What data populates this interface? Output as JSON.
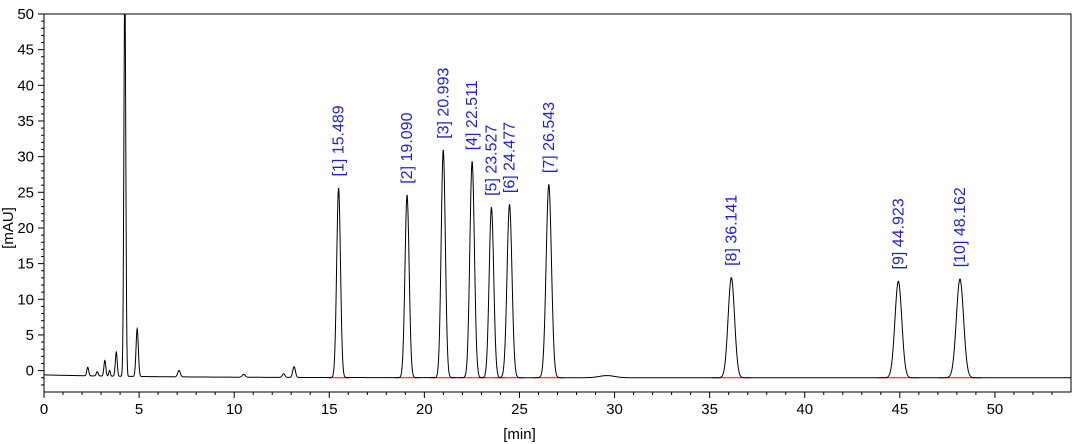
{
  "chart_data": {
    "type": "line",
    "xlabel": "[min]",
    "ylabel": "[mAU]",
    "xlim": [
      0,
      54
    ],
    "ylim": [
      -3,
      50
    ],
    "x_ticks": [
      0,
      5,
      10,
      15,
      20,
      25,
      30,
      35,
      40,
      45,
      50
    ],
    "y_ticks": [
      0,
      5,
      10,
      15,
      20,
      25,
      30,
      35,
      40,
      45,
      50
    ],
    "x_tick_labels": [
      "0",
      "5",
      "10",
      "15",
      "20",
      "25",
      "30",
      "35",
      "40",
      "45",
      "50"
    ],
    "y_tick_labels": [
      "0",
      "5",
      "10",
      "15",
      "20",
      "25",
      "30",
      "35",
      "40",
      "45",
      "50"
    ],
    "grid": false,
    "colors": {
      "trace": "#000000",
      "baseline": "#ff0000",
      "labels": "#1f1fcf",
      "frame": "#000000"
    },
    "baseline_level": -1.0,
    "labeled_peaks": [
      {
        "label": "[1]  15.489",
        "x": 15.489,
        "y": 26.5,
        "width": 0.1
      },
      {
        "label": "[2]  19.090",
        "x": 19.09,
        "y": 25.5,
        "width": 0.11
      },
      {
        "label": "[3]  20.993",
        "x": 20.993,
        "y": 31.8,
        "width": 0.11
      },
      {
        "label": "[4]  22.511",
        "x": 22.511,
        "y": 30.2,
        "width": 0.12
      },
      {
        "label": "[5]  23.527",
        "x": 23.527,
        "y": 23.8,
        "width": 0.12
      },
      {
        "label": "[6]  24.477",
        "x": 24.477,
        "y": 24.2,
        "width": 0.13
      },
      {
        "label": "[7]  26.543",
        "x": 26.543,
        "y": 27.0,
        "width": 0.14
      },
      {
        "label": "[8]  36.141",
        "x": 36.141,
        "y": 14.0,
        "width": 0.17
      },
      {
        "label": "[9]  44.923",
        "x": 44.923,
        "y": 13.5,
        "width": 0.18
      },
      {
        "label": "[10]  48.162",
        "x": 48.162,
        "y": 13.8,
        "width": 0.19
      }
    ],
    "minor_peaks": [
      {
        "x": 2.3,
        "y": 1.2,
        "width": 0.05
      },
      {
        "x": 2.8,
        "y": 0.6,
        "width": 0.05
      },
      {
        "x": 3.2,
        "y": 2.2,
        "width": 0.05
      },
      {
        "x": 3.45,
        "y": 0.8,
        "width": 0.04
      },
      {
        "x": 3.8,
        "y": 3.4,
        "width": 0.05
      },
      {
        "x": 4.25,
        "y": 55.0,
        "width": 0.05
      },
      {
        "x": 4.9,
        "y": 6.7,
        "width": 0.06
      },
      {
        "x": 7.1,
        "y": 0.9,
        "width": 0.07
      },
      {
        "x": 10.5,
        "y": 0.4,
        "width": 0.08
      },
      {
        "x": 12.6,
        "y": 0.5,
        "width": 0.07
      },
      {
        "x": 13.15,
        "y": 1.5,
        "width": 0.07
      },
      {
        "x": 29.6,
        "y": 0.3,
        "width": 0.4
      }
    ]
  }
}
